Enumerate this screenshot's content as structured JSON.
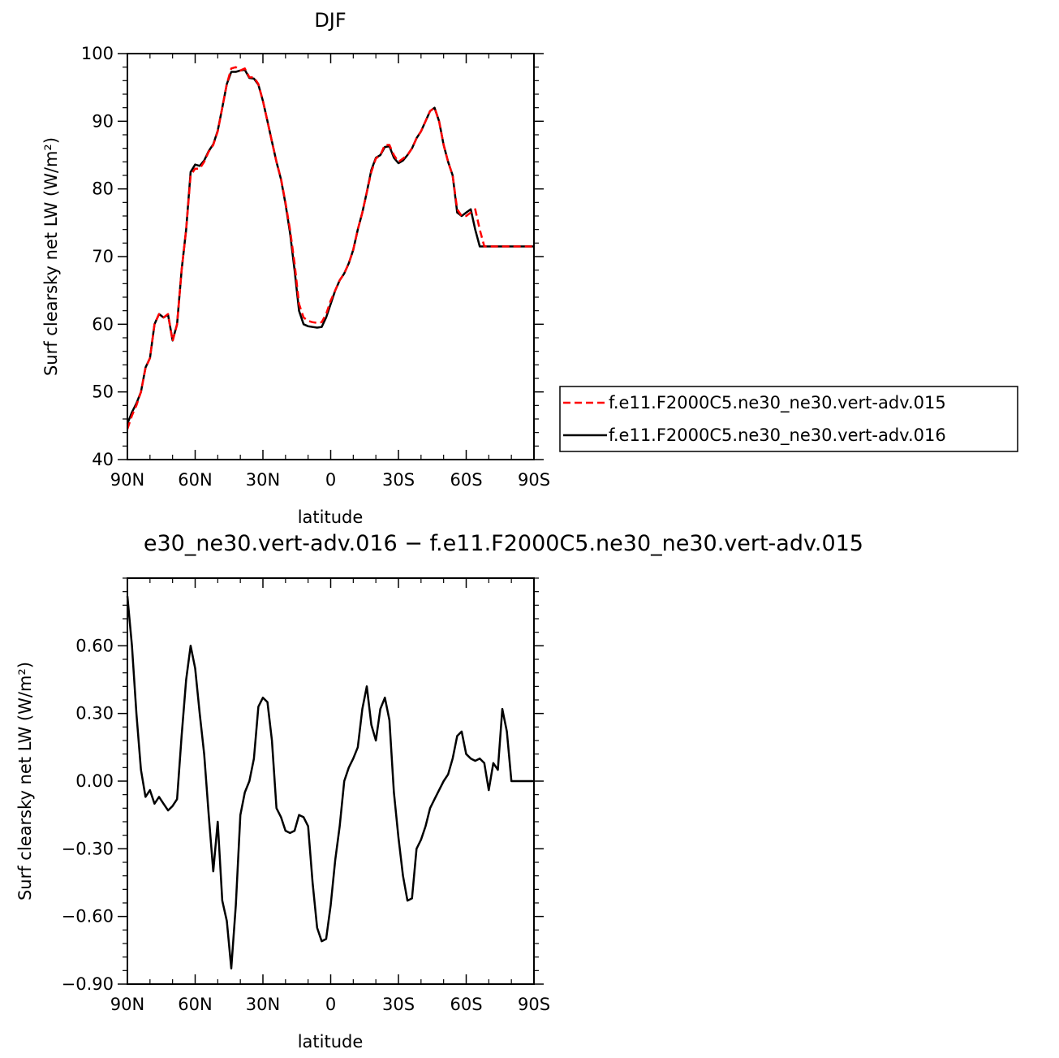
{
  "chart_data": [
    {
      "type": "line",
      "title": "DJF",
      "xlabel": "latitude",
      "ylabel": "Surf clearsky net LW (W/m²)",
      "xlim": [
        -90,
        90
      ],
      "ylim": [
        40,
        100
      ],
      "x_ticks": [
        -90,
        -60,
        -30,
        0,
        30,
        60,
        90
      ],
      "x_tick_labels": [
        "90N",
        "60N",
        "30N",
        "0",
        "30S",
        "60S",
        "90S"
      ],
      "y_ticks": [
        40,
        50,
        60,
        70,
        80,
        90,
        100
      ],
      "y_tick_labels": [
        "40",
        "50",
        "60",
        "70",
        "80",
        "90",
        "100"
      ],
      "legend": "right",
      "series": [
        {
          "name": "f.e11.F2000C5.ne30_ne30.vert-adv.015",
          "color": "#ff0000",
          "dash": "dashed",
          "x": [
            -90,
            -88,
            -86,
            -84,
            -82,
            -80,
            -78,
            -76,
            -74,
            -72,
            -70,
            -68,
            -66,
            -64,
            -62,
            -60,
            -58,
            -56,
            -54,
            -52,
            -50,
            -48,
            -46,
            -44,
            -42,
            -40,
            -38,
            -36,
            -34,
            -32,
            -30,
            -28,
            -26,
            -24,
            -22,
            -20,
            -18,
            -16,
            -14,
            -12,
            -10,
            -8,
            -6,
            -4,
            -2,
            0,
            2,
            4,
            6,
            8,
            10,
            12,
            14,
            16,
            18,
            20,
            22,
            24,
            26,
            28,
            30,
            32,
            34,
            36,
            38,
            40,
            42,
            44,
            46,
            48,
            50,
            52,
            54,
            56,
            58,
            60,
            62,
            64,
            66,
            68,
            70,
            72,
            74,
            76,
            78,
            80,
            82,
            84,
            86,
            88,
            90
          ],
          "values": [
            44.5,
            46.5,
            48,
            50,
            53.5,
            55,
            60,
            61.5,
            61,
            61.5,
            57.5,
            60,
            68,
            74,
            82,
            83,
            83,
            84,
            85.5,
            86.5,
            88.5,
            92,
            95.5,
            97.8,
            98,
            97.5,
            97.8,
            96.5,
            96.5,
            95.5,
            93,
            90,
            87,
            84,
            81.5,
            78,
            74,
            69,
            63,
            61,
            60.5,
            60.3,
            60.2,
            60.3,
            61.5,
            63.5,
            65,
            66.5,
            67.5,
            69,
            71,
            74,
            76.5,
            79.5,
            82.5,
            84.5,
            85,
            86.5,
            86.5,
            85,
            84,
            84.5,
            85,
            86,
            87.5,
            88.5,
            90,
            91.5,
            92,
            90,
            86.5,
            84,
            82,
            77,
            76,
            76,
            76.5,
            77,
            74,
            71.5,
            71.5,
            71.5,
            71.5,
            71.5,
            71.5,
            71.5,
            71.5,
            71.5,
            71.5,
            71.5,
            71.5
          ]
        },
        {
          "name": "f.e11.F2000C5.ne30_ne30.vert-adv.016",
          "color": "#000000",
          "dash": "solid",
          "x": [
            -90,
            -88,
            -86,
            -84,
            -82,
            -80,
            -78,
            -76,
            -74,
            -72,
            -70,
            -68,
            -66,
            -64,
            -62,
            -60,
            -58,
            -56,
            -54,
            -52,
            -50,
            -48,
            -46,
            -44,
            -42,
            -40,
            -38,
            -36,
            -34,
            -32,
            -30,
            -28,
            -26,
            -24,
            -22,
            -20,
            -18,
            -16,
            -14,
            -12,
            -10,
            -8,
            -6,
            -4,
            -2,
            0,
            2,
            4,
            6,
            8,
            10,
            12,
            14,
            16,
            18,
            20,
            22,
            24,
            26,
            28,
            30,
            32,
            34,
            36,
            38,
            40,
            42,
            44,
            46,
            48,
            50,
            52,
            54,
            56,
            58,
            60,
            62,
            64,
            66,
            68,
            70,
            72,
            74,
            76,
            78,
            80,
            82,
            84,
            86,
            88,
            90
          ],
          "values": [
            45.3,
            47,
            48.3,
            50,
            53.6,
            55,
            60,
            61.5,
            61,
            61.4,
            57.6,
            60,
            68,
            74,
            82.5,
            83.6,
            83.4,
            84.2,
            85.6,
            86.6,
            88.6,
            92,
            95.5,
            97.3,
            97.3,
            97.5,
            97.6,
            96.4,
            96.3,
            95.4,
            93,
            90,
            87,
            84,
            81.4,
            77.8,
            73.5,
            68,
            62,
            60,
            59.7,
            59.6,
            59.5,
            59.6,
            61,
            63,
            65,
            66.5,
            67.5,
            69,
            71,
            74,
            76.5,
            79.5,
            82.8,
            84.6,
            85,
            86.2,
            86.3,
            84.6,
            83.8,
            84.2,
            85,
            86,
            87.5,
            88.5,
            90,
            91.5,
            92,
            90,
            86.5,
            84,
            82,
            76.5,
            76,
            76.5,
            77,
            74,
            71.5,
            71.5,
            71.5,
            71.5,
            71.5,
            71.5,
            71.5,
            71.5,
            71.5,
            71.5,
            71.5,
            71.5,
            71.5
          ]
        }
      ]
    },
    {
      "type": "line",
      "title": "e30_ne30.vert-adv.016 − f.e11.F2000C5.ne30_ne30.vert-adv.015",
      "xlabel": "latitude",
      "ylabel": "Surf clearsky net LW (W/m²)",
      "xlim": [
        -90,
        90
      ],
      "ylim": [
        -0.9,
        0.9
      ],
      "x_ticks": [
        -90,
        -60,
        -30,
        0,
        30,
        60,
        90
      ],
      "x_tick_labels": [
        "90N",
        "60N",
        "30N",
        "0",
        "30S",
        "60S",
        "90S"
      ],
      "y_ticks": [
        -0.9,
        -0.6,
        -0.3,
        0,
        0.3,
        0.6
      ],
      "y_tick_labels": [
        "−0.90",
        "−0.60",
        "−0.30",
        "0.00",
        "0.30",
        "0.60"
      ],
      "series": [
        {
          "color": "#000000",
          "dash": "solid",
          "x": [
            -90,
            -88,
            -86,
            -84,
            -82,
            -80,
            -78,
            -76,
            -74,
            -72,
            -70,
            -68,
            -66,
            -64,
            -62,
            -60,
            -58,
            -56,
            -54,
            -52,
            -50,
            -48,
            -46,
            -44,
            -42,
            -40,
            -38,
            -36,
            -34,
            -32,
            -30,
            -28,
            -26,
            -24,
            -22,
            -20,
            -18,
            -16,
            -14,
            -12,
            -10,
            -8,
            -6,
            -4,
            -2,
            0,
            2,
            4,
            6,
            8,
            10,
            12,
            14,
            16,
            18,
            20,
            22,
            24,
            26,
            28,
            30,
            32,
            34,
            36,
            38,
            40,
            42,
            44,
            46,
            48,
            50,
            52,
            54,
            56,
            58,
            60,
            62,
            64,
            66,
            68,
            70,
            72,
            74,
            76,
            78,
            80,
            82,
            84,
            86,
            88,
            90
          ],
          "values": [
            0.82,
            0.6,
            0.3,
            0.05,
            -0.07,
            -0.04,
            -0.1,
            -0.07,
            -0.1,
            -0.13,
            -0.11,
            -0.08,
            0.2,
            0.45,
            0.6,
            0.5,
            0.3,
            0.12,
            -0.15,
            -0.4,
            -0.18,
            -0.53,
            -0.62,
            -0.83,
            -0.55,
            -0.15,
            -0.05,
            0.0,
            0.1,
            0.33,
            0.37,
            0.35,
            0.18,
            -0.12,
            -0.16,
            -0.22,
            -0.23,
            -0.22,
            -0.15,
            -0.16,
            -0.2,
            -0.45,
            -0.65,
            -0.71,
            -0.7,
            -0.55,
            -0.35,
            -0.2,
            0.0,
            0.06,
            0.1,
            0.15,
            0.32,
            0.42,
            0.25,
            0.18,
            0.32,
            0.37,
            0.27,
            -0.05,
            -0.25,
            -0.42,
            -0.53,
            -0.52,
            -0.3,
            -0.26,
            -0.2,
            -0.12,
            -0.08,
            -0.04,
            0.0,
            0.03,
            0.1,
            0.2,
            0.22,
            0.12,
            0.1,
            0.09,
            0.1,
            0.08,
            -0.04,
            0.08,
            0.05,
            0.32,
            0.22,
            0.0,
            0.0,
            0.0,
            0.0,
            0.0,
            0.0
          ]
        }
      ]
    }
  ]
}
